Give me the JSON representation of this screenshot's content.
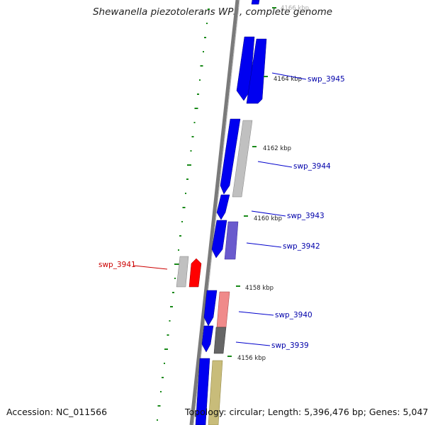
{
  "title": "Shewanella piezotolerans WP3, complete genome",
  "footer": {
    "accession": "Accession: NC_011566",
    "summary": "Topology: circular; Length: 5,396,476 bp; Genes: 5,047"
  },
  "colors": {
    "blue": "#0000f0",
    "grey": "#c0c0c0",
    "dark_grey": "#666666",
    "pink": "#f08a8a",
    "purple": "#6a5acd",
    "olive": "#c8bc7a",
    "red": "#ff0000",
    "label_blue": "#0000aa",
    "label_red": "#cc0000",
    "gc_green": "#1a8a1a",
    "backbone": "#7a7a7a"
  },
  "kbp_ticks": [
    {
      "text": "4166 kbp"
    },
    {
      "text": "4164 kbp"
    },
    {
      "text": "4162 kbp"
    },
    {
      "text": "4160 kbp"
    },
    {
      "text": "4158 kbp"
    },
    {
      "text": "4156 kbp"
    }
  ],
  "gene_labels": [
    {
      "text": "swp_3945"
    },
    {
      "text": "swp_3944"
    },
    {
      "text": "swp_3943"
    },
    {
      "text": "swp_3942"
    },
    {
      "text": "swp_3941"
    },
    {
      "text": "swp_3940"
    },
    {
      "text": "swp_3939"
    }
  ]
}
